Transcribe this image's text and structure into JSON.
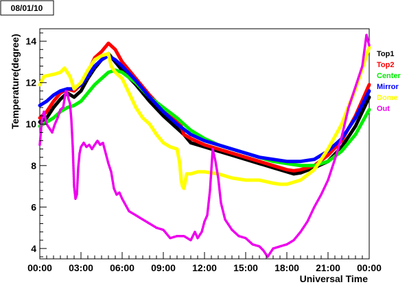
{
  "date_label": "08/01/10",
  "chart_data": {
    "type": "line",
    "xlabel": "Universal Time",
    "ylabel": "Temperature(degree)",
    "xlim": [
      0,
      24
    ],
    "ylim": [
      3.5,
      14.6
    ],
    "x_ticks": [
      "00:00",
      "03:00",
      "06:00",
      "09:00",
      "12:00",
      "15:00",
      "18:00",
      "21:00",
      "00:00"
    ],
    "y_ticks": [
      "4",
      "6",
      "8",
      "10",
      "12",
      "14"
    ],
    "grid": false,
    "legend_position": "right",
    "series": [
      {
        "name": "Top1",
        "color": "#000000",
        "x": [
          0,
          0.5,
          1,
          1.5,
          2,
          2.5,
          3,
          3.5,
          4,
          4.5,
          5,
          5.5,
          6,
          7,
          8,
          9,
          10,
          10.5,
          11,
          12,
          13,
          14,
          15,
          16,
          17,
          18,
          18.5,
          19,
          20,
          21,
          22,
          23,
          24
        ],
        "y": [
          10.1,
          10.3,
          10.8,
          11.2,
          11.5,
          11.3,
          11.6,
          12.2,
          12.7,
          13.1,
          13.4,
          13.0,
          12.6,
          11.9,
          11.1,
          10.4,
          9.8,
          9.5,
          9.1,
          8.9,
          8.7,
          8.5,
          8.3,
          8.1,
          7.9,
          7.7,
          7.6,
          7.65,
          7.9,
          8.2,
          8.9,
          9.9,
          11.3
        ]
      },
      {
        "name": "Top2",
        "color": "#ff0000",
        "x": [
          0,
          0.5,
          1,
          1.5,
          2,
          2.5,
          3,
          3.5,
          4,
          4.5,
          5,
          5.5,
          6,
          7,
          8,
          9,
          10,
          10.3,
          10.5,
          11,
          12,
          13,
          14,
          15,
          16,
          17,
          18,
          18.5,
          19,
          20,
          21,
          22,
          23,
          24
        ],
        "y": [
          10.3,
          10.6,
          11.1,
          11.5,
          11.7,
          11.6,
          11.9,
          12.5,
          13.2,
          13.5,
          13.9,
          13.6,
          13.0,
          12.2,
          11.4,
          10.7,
          10.2,
          9.9,
          9.5,
          9.3,
          9.0,
          8.8,
          8.6,
          8.4,
          8.2,
          8.0,
          7.8,
          7.75,
          7.8,
          8.0,
          8.5,
          9.2,
          10.4,
          11.9
        ]
      },
      {
        "name": "Center",
        "color": "#00ee00",
        "x": [
          0,
          0.5,
          1,
          1.5,
          2,
          2.5,
          3,
          3.5,
          4,
          4.5,
          5,
          5.5,
          6,
          7,
          8,
          9,
          10,
          11,
          12,
          13,
          14,
          15,
          16,
          17,
          18,
          19,
          20,
          21,
          22,
          23,
          24
        ],
        "y": [
          9.9,
          10.1,
          10.3,
          10.6,
          10.8,
          10.9,
          11.1,
          11.5,
          11.9,
          12.2,
          12.5,
          12.6,
          12.5,
          12.0,
          11.3,
          10.8,
          10.3,
          9.7,
          9.3,
          9.0,
          8.8,
          8.6,
          8.4,
          8.2,
          8.1,
          8.0,
          8.0,
          8.2,
          8.7,
          9.5,
          10.7
        ]
      },
      {
        "name": "Mirror",
        "color": "#0000ff",
        "x": [
          0,
          0.5,
          1,
          1.5,
          2,
          2.5,
          3,
          3.5,
          4,
          4.5,
          5,
          5.5,
          6,
          7,
          8,
          9,
          10,
          11,
          12,
          13,
          14,
          15,
          16,
          17,
          18,
          19,
          20,
          21,
          22,
          23,
          24
        ],
        "y": [
          10.9,
          11.1,
          11.4,
          11.6,
          11.7,
          11.7,
          11.9,
          12.3,
          12.8,
          13.1,
          13.3,
          13.1,
          12.8,
          12.1,
          11.3,
          10.6,
          10.0,
          9.5,
          9.2,
          9.0,
          8.8,
          8.6,
          8.4,
          8.3,
          8.2,
          8.2,
          8.3,
          8.7,
          9.3,
          10.3,
          11.6
        ]
      },
      {
        "name": "Dome",
        "color": "#ffff00",
        "x": [
          0,
          0.3,
          1,
          1.5,
          1.8,
          2.2,
          2.5,
          3,
          3.5,
          4,
          4.5,
          5,
          5.2,
          5.5,
          6,
          6.5,
          7,
          7.5,
          8,
          8.5,
          9,
          9.5,
          10,
          10.2,
          10.3,
          10.4,
          10.5,
          10.7,
          11,
          11.5,
          12,
          13,
          14,
          15,
          16,
          17,
          17.5,
          18,
          19,
          20,
          21,
          22,
          23,
          24
        ],
        "y": [
          11.9,
          12.3,
          12.4,
          12.5,
          12.7,
          12.3,
          11.7,
          12.0,
          12.6,
          13.1,
          13.3,
          13.4,
          12.8,
          12.5,
          12.2,
          11.5,
          10.8,
          10.3,
          10.0,
          9.5,
          9.1,
          8.9,
          8.8,
          8.1,
          7.3,
          7.0,
          6.9,
          7.6,
          7.6,
          7.7,
          7.7,
          7.6,
          7.4,
          7.3,
          7.3,
          7.15,
          7.1,
          7.1,
          7.3,
          7.8,
          8.8,
          10.0,
          11.7,
          13.7
        ]
      },
      {
        "name": "Out",
        "color": "#ee00ee",
        "x": [
          0,
          0.15,
          0.3,
          0.5,
          0.7,
          0.9,
          1.1,
          1.3,
          1.5,
          1.7,
          1.9,
          2.0,
          2.1,
          2.2,
          2.3,
          2.4,
          2.5,
          2.6,
          2.7,
          2.8,
          2.9,
          3.0,
          3.2,
          3.4,
          3.6,
          3.8,
          4.0,
          4.2,
          4.4,
          4.6,
          4.8,
          5.0,
          5.2,
          5.4,
          5.6,
          5.8,
          6.0,
          6.5,
          7.0,
          7.5,
          8.0,
          8.5,
          9.0,
          9.5,
          10.0,
          10.5,
          11.0,
          11.3,
          11.5,
          11.8,
          12.0,
          12.2,
          12.4,
          12.6,
          12.8,
          13.0,
          13.2,
          13.5,
          14.0,
          14.5,
          15.0,
          15.5,
          16.0,
          16.3,
          16.6,
          17.0,
          17.5,
          18.0,
          18.5,
          19.0,
          19.5,
          20.0,
          20.5,
          21.0,
          21.5,
          22.0,
          22.5,
          23.0,
          23.5,
          23.8,
          24.0
        ],
        "y": [
          9.0,
          10.2,
          10.6,
          10.0,
          9.8,
          9.6,
          10.0,
          10.3,
          10.7,
          10.8,
          11.6,
          11.5,
          11.2,
          11.0,
          10.2,
          8.9,
          7.0,
          6.4,
          6.6,
          7.9,
          8.6,
          8.9,
          9.1,
          8.9,
          9.0,
          8.8,
          9.0,
          9.2,
          9.0,
          9.1,
          8.6,
          8.1,
          7.7,
          6.9,
          6.6,
          6.7,
          6.4,
          5.8,
          5.6,
          5.4,
          5.2,
          5.0,
          4.9,
          4.5,
          4.6,
          4.6,
          4.4,
          4.8,
          4.5,
          4.8,
          5.3,
          5.6,
          6.8,
          8.8,
          8.2,
          7.4,
          6.2,
          5.4,
          4.9,
          4.6,
          4.5,
          4.2,
          4.1,
          3.9,
          3.6,
          4.0,
          4.1,
          4.2,
          4.4,
          4.8,
          5.3,
          6.0,
          6.6,
          7.3,
          8.3,
          9.4,
          10.8,
          11.8,
          12.8,
          14.3,
          13.8
        ]
      }
    ]
  }
}
